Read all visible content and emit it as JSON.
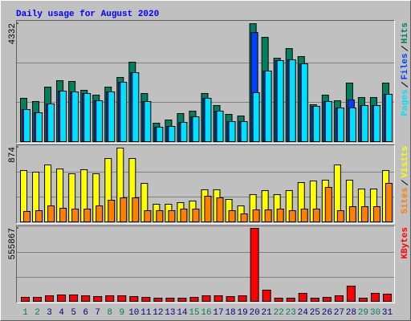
{
  "chart_data": [
    {
      "type": "bar",
      "title": "Daily usage for August 2020",
      "ylim": [
        0,
        4332
      ],
      "yticks": [
        4332
      ],
      "series": [
        {
          "name": "Hits",
          "color": "#00805c",
          "values": [
            1590,
            1470,
            2000,
            2240,
            2210,
            1890,
            1710,
            2000,
            2360,
            2920,
            1770,
            680,
            800,
            1030,
            1120,
            1770,
            1330,
            1000,
            940,
            4332,
            3830,
            3060,
            3420,
            3120,
            1360,
            1710,
            1500,
            2150,
            1620,
            1620,
            2150
          ]
        },
        {
          "name": "Files",
          "color": "#0040ff",
          "values": [
            1180,
            1060,
            1390,
            1860,
            1830,
            1770,
            1500,
            1830,
            2180,
            2530,
            1470,
            530,
            560,
            710,
            910,
            1590,
            1120,
            740,
            740,
            4010,
            2590,
            2980,
            3010,
            2860,
            1300,
            1470,
            1240,
            1530,
            1330,
            1330,
            1740
          ]
        },
        {
          "name": "Pages",
          "color": "#00e0ff",
          "values": [
            1180,
            1060,
            1390,
            1860,
            1830,
            1770,
            1500,
            1830,
            2180,
            2530,
            1470,
            530,
            560,
            710,
            910,
            1590,
            1120,
            740,
            740,
            1800,
            2590,
            2980,
            3010,
            2860,
            1300,
            1470,
            1240,
            1240,
            1330,
            1330,
            1740
          ]
        }
      ]
    },
    {
      "type": "bar",
      "ylim": [
        0,
        874
      ],
      "yticks": [
        874
      ],
      "series": [
        {
          "name": "Visits",
          "color": "#ffff00",
          "values": [
            600,
            580,
            670,
            620,
            560,
            610,
            560,
            740,
            865,
            740,
            450,
            210,
            210,
            230,
            240,
            380,
            380,
            260,
            190,
            320,
            370,
            320,
            370,
            460,
            480,
            490,
            670,
            490,
            390,
            390,
            600
          ]
        },
        {
          "name": "Sites",
          "color": "#ff8000",
          "values": [
            120,
            130,
            190,
            160,
            150,
            150,
            190,
            250,
            280,
            280,
            130,
            130,
            130,
            150,
            150,
            300,
            280,
            130,
            95,
            140,
            140,
            150,
            130,
            150,
            150,
            400,
            130,
            180,
            180,
            180,
            450
          ]
        }
      ]
    },
    {
      "type": "bar",
      "ylim": [
        0,
        555867
      ],
      "yticks": [
        555867
      ],
      "categories": [
        "1",
        "2",
        "3",
        "4",
        "5",
        "6",
        "7",
        "8",
        "9",
        "10",
        "11",
        "12",
        "13",
        "14",
        "15",
        "16",
        "17",
        "18",
        "19",
        "20",
        "21",
        "22",
        "23",
        "24",
        "25",
        "26",
        "27",
        "28",
        "29",
        "30",
        "31"
      ],
      "category_colors": [
        "#00805c",
        "#00805c",
        "#000080",
        "#000080",
        "#000080",
        "#000080",
        "#000080",
        "#00805c",
        "#00805c",
        "#000080",
        "#000080",
        "#000080",
        "#000080",
        "#000080",
        "#00805c",
        "#00805c",
        "#000080",
        "#000080",
        "#000080",
        "#000080",
        "#000080",
        "#00805c",
        "#00805c",
        "#000080",
        "#000080",
        "#000080",
        "#000080",
        "#000080",
        "#00805c",
        "#00805c",
        "#000080"
      ],
      "series": [
        {
          "name": "KBytes",
          "color": "#ff0000",
          "values": [
            30000,
            30000,
            43000,
            49000,
            49000,
            43000,
            37000,
            43000,
            43000,
            37000,
            30000,
            24000,
            24000,
            24000,
            30000,
            43000,
            43000,
            37000,
            43000,
            555867,
            86000,
            24000,
            24000,
            61000,
            24000,
            30000,
            43000,
            116000,
            24000,
            61000,
            55000
          ]
        }
      ]
    }
  ]
}
